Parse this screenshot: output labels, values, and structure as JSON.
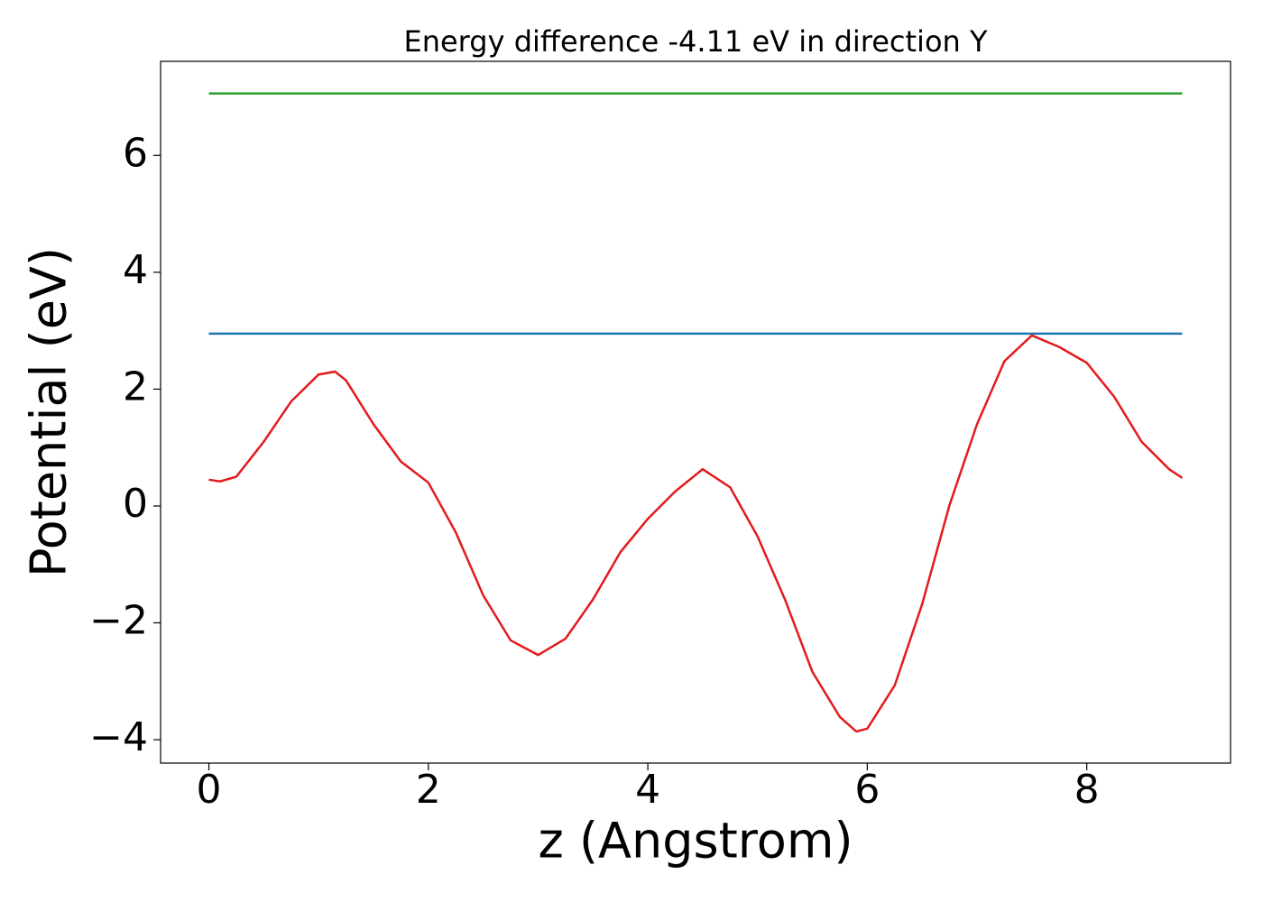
{
  "chart_data": {
    "type": "line",
    "title": "Energy difference -4.11 eV in direction Y",
    "x_label": "z (Angstrom)",
    "y_label": "Potential (eV)",
    "xlim": [
      -0.44,
      9.31
    ],
    "ylim": [
      -4.4,
      7.61
    ],
    "xticks": [
      0,
      2,
      4,
      6,
      8
    ],
    "yticks": [
      {
        "value": -4,
        "label": "−4"
      },
      {
        "value": -2,
        "label": "−2"
      },
      0,
      2,
      4,
      6
    ],
    "grid": false,
    "series": [
      {
        "color": "#1f77b4",
        "x": [
          0,
          8.87
        ],
        "values": [
          2.95,
          2.95
        ]
      },
      {
        "color": "#2ca02c",
        "x": [
          0,
          8.87
        ],
        "values": [
          7.06,
          7.06
        ]
      },
      {
        "color": "#e41a1c",
        "x": [
          0,
          0.1,
          0.25,
          0.5,
          0.75,
          1.0,
          1.15,
          1.25,
          1.5,
          1.75,
          2.0,
          2.25,
          2.5,
          2.75,
          3.0,
          3.25,
          3.5,
          3.75,
          4.0,
          4.25,
          4.5,
          4.75,
          5.0,
          5.25,
          5.5,
          5.75,
          5.9,
          6.0,
          6.25,
          6.5,
          6.75,
          7.0,
          7.25,
          7.5,
          7.75,
          8.0,
          8.25,
          8.5,
          8.75,
          8.87
        ],
        "values": [
          0.45,
          0.42,
          0.5,
          1.1,
          1.79,
          2.25,
          2.3,
          2.15,
          1.4,
          0.76,
          0.4,
          -0.45,
          -1.53,
          -2.3,
          -2.55,
          -2.27,
          -1.6,
          -0.79,
          -0.22,
          0.25,
          0.63,
          0.32,
          -0.52,
          -1.6,
          -2.84,
          -3.61,
          -3.86,
          -3.81,
          -3.07,
          -1.68,
          0.02,
          1.4,
          2.48,
          2.92,
          2.72,
          2.45,
          1.87,
          1.1,
          0.63,
          0.48
        ]
      }
    ]
  }
}
